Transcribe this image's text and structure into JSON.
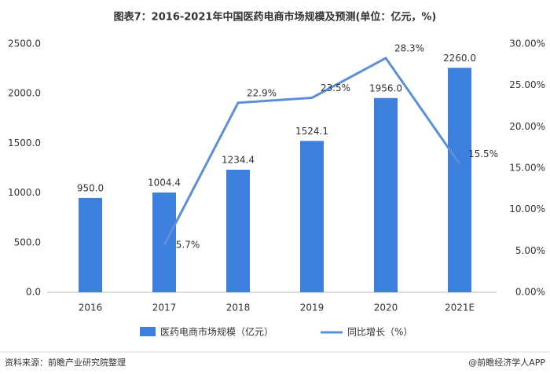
{
  "chart_data": {
    "type": "bar_line",
    "title": "图表7：2016-2021年中国医药电商市场规模及预测(单位：亿元，%)",
    "categories": [
      "2016",
      "2017",
      "2018",
      "2019",
      "2020",
      "2021E"
    ],
    "series": [
      {
        "name": "医药电商市场规模（亿元）",
        "type": "bar",
        "color": "#3d7fdc",
        "values": [
          950.0,
          1004.4,
          1234.4,
          1524.1,
          1956.0,
          2260.0
        ],
        "value_labels": [
          "950.0",
          "1004.4",
          "1234.4",
          "1524.1",
          "1956.0",
          "2260.0"
        ]
      },
      {
        "name": "同比增长（%）",
        "type": "line",
        "axis": "y2",
        "color": "#5b8fd9",
        "values": [
          null,
          5.7,
          22.9,
          23.5,
          28.3,
          15.5
        ],
        "value_labels": [
          null,
          "5.7%",
          "22.9%",
          "23.5%",
          "28.3%",
          "15.5%"
        ]
      }
    ],
    "ylim": [
      0,
      2500
    ],
    "yticks": [
      {
        "value": 0,
        "label": "0.0"
      },
      {
        "value": 500,
        "label": "500.0"
      },
      {
        "value": 1000,
        "label": "1000.0"
      },
      {
        "value": 1500,
        "label": "1500.0"
      },
      {
        "value": 2000,
        "label": "2000.0"
      },
      {
        "value": 2500,
        "label": "2500.0"
      }
    ],
    "y2lim": [
      0,
      30
    ],
    "y2ticks": [
      {
        "value": 0,
        "label": "0.00%"
      },
      {
        "value": 5,
        "label": "5.00%"
      },
      {
        "value": 10,
        "label": "10.00%"
      },
      {
        "value": 15,
        "label": "15.00%"
      },
      {
        "value": 20,
        "label": "20.00%"
      },
      {
        "value": 25,
        "label": "25.00%"
      },
      {
        "value": 30,
        "label": "30.00%"
      }
    ],
    "legend": "bottom",
    "source": "资料来源：前瞻产业研究院整理",
    "credit": "@前瞻经济学人APP"
  }
}
